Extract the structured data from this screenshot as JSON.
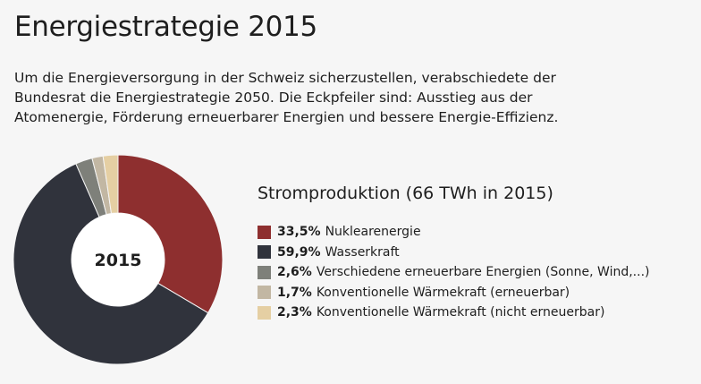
{
  "header": {
    "title": "Energiestrategie 2015",
    "intro_lines": [
      "Um die Energieversorgung in der Schweiz sicherzustellen, verabschiedete der",
      "Bundesrat die Energiestrategie 2050. Die Eckpfeiler sind: Ausstieg aus der",
      "Atomenergie, Förderung erneuerbarer Energien und bessere Energie-Effizienz."
    ]
  },
  "chart_data": {
    "type": "pie",
    "title": "Stromproduktion (66 TWh in 2015)",
    "center_label": "2015",
    "unit": "%",
    "slices": [
      {
        "label": "Nuklearenergie",
        "value": 33.5,
        "value_text": "33,5%",
        "color": "#8e2f2f"
      },
      {
        "label": "Wasserkraft",
        "value": 59.9,
        "value_text": "59,9%",
        "color": "#30333c"
      },
      {
        "label": "Verschiedene erneuerbare Energien (Sonne, Wind,...)",
        "value": 2.6,
        "value_text": "2,6%",
        "color": "#7e807a"
      },
      {
        "label": "Konventionelle Wärmekraft (erneuerbar)",
        "value": 1.7,
        "value_text": "1,7%",
        "color": "#c2b7a3"
      },
      {
        "label": "Konventionelle Wärmekraft (nicht erneuerbar)",
        "value": 2.3,
        "value_text": "2,3%",
        "color": "#e5cfa3"
      }
    ]
  }
}
